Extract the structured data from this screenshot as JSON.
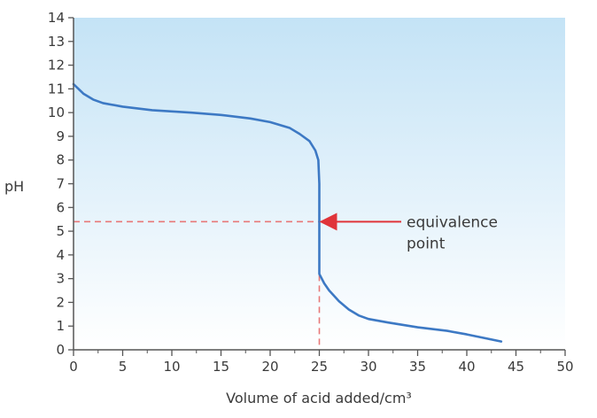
{
  "chart_data": {
    "type": "line",
    "title": "",
    "xlabel": "Volume of acid added/cm³",
    "ylabel": "pH",
    "xlim": [
      0,
      50
    ],
    "ylim": [
      0,
      14
    ],
    "xticks": [
      0,
      5,
      10,
      15,
      20,
      25,
      30,
      35,
      40,
      45,
      50
    ],
    "yticks": [
      0,
      1,
      2,
      3,
      4,
      5,
      6,
      7,
      8,
      9,
      10,
      11,
      12,
      13,
      14
    ],
    "grid": false,
    "background": "light-blue gradient",
    "series": [
      {
        "name": "",
        "color": "#3d79c4",
        "points": [
          [
            0,
            11.2
          ],
          [
            0.5,
            11.0
          ],
          [
            1,
            10.8
          ],
          [
            2,
            10.55
          ],
          [
            3,
            10.4
          ],
          [
            5,
            10.25
          ],
          [
            8,
            10.1
          ],
          [
            10,
            10.05
          ],
          [
            12,
            10.0
          ],
          [
            15,
            9.9
          ],
          [
            18,
            9.75
          ],
          [
            20,
            9.6
          ],
          [
            22,
            9.35
          ],
          [
            23,
            9.1
          ],
          [
            24,
            8.8
          ],
          [
            24.6,
            8.4
          ],
          [
            24.9,
            8.0
          ],
          [
            25,
            7.0
          ],
          [
            25,
            5.5
          ],
          [
            25,
            3.2
          ],
          [
            25.5,
            2.8
          ],
          [
            26,
            2.5
          ],
          [
            27,
            2.05
          ],
          [
            28,
            1.7
          ],
          [
            29,
            1.45
          ],
          [
            30,
            1.3
          ],
          [
            32,
            1.15
          ],
          [
            35,
            0.95
          ],
          [
            38,
            0.8
          ],
          [
            40,
            0.65
          ],
          [
            43.5,
            0.35
          ]
        ]
      }
    ],
    "annotations": [
      {
        "text": [
          "equivalence",
          "point"
        ],
        "target": [
          25,
          5.4
        ],
        "arrow_color": "#e0343a",
        "guide_color": "#e87878",
        "guide_style": "dashed"
      }
    ]
  }
}
